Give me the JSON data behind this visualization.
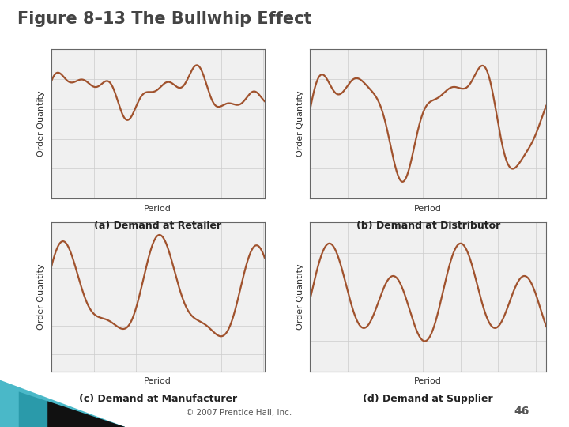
{
  "title": "Figure 8–13 The Bullwhip Effect",
  "title_fontsize": 15,
  "title_color": "#444444",
  "background_color": "#ffffff",
  "line_color": "#a0522d",
  "line_width": 1.6,
  "grid_color": "#cccccc",
  "subplot_labels": [
    "(a) Demand at Retailer",
    "(b) Demand at Distributor",
    "(c) Demand at Manufacturer",
    "(d) Demand at Supplier"
  ],
  "xlabel": "Period",
  "ylabel": "Order Quantity",
  "ylabel_fontsize": 8,
  "xlabel_fontsize": 8,
  "label_fontsize": 9,
  "copyright": "© 2007 Prentice Hall, Inc.",
  "page_num": "46",
  "footer_color": "#555555",
  "num_points": 1000
}
